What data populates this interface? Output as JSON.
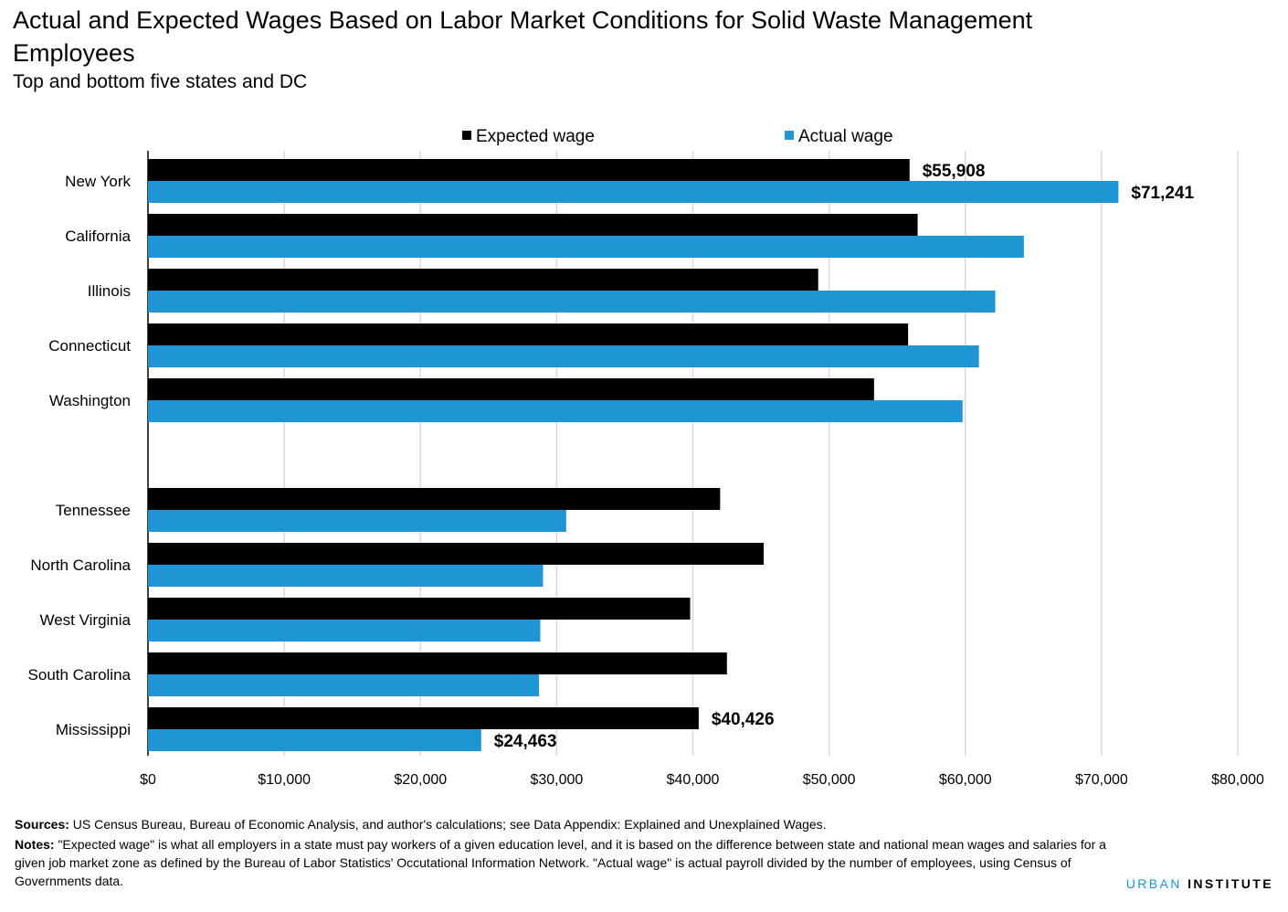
{
  "title": "Actual and Expected Wages Based on Labor Market Conditions for Solid Waste Management Employees",
  "subtitle": "Top and bottom five states and DC",
  "legend": {
    "expected": "Expected wage",
    "actual": "Actual wage"
  },
  "footer": {
    "sources_label": "Sources:",
    "sources_text": " US Census Bureau, Bureau of Economic Analysis, and author's calculations; see Data Appendix: Explained and Unexplained Wages.",
    "notes_label": "Notes:",
    "notes_text": " \"Expected wage\" is what all employers in a state must pay workers of a given education level, and it is based on the difference between state and national mean wages and salaries for a given job market zone as defined by the Bureau of Labor Statistics' Occutational Information Network. \"Actual wage\" is actual payroll divided by the number of employees, using Census of Governments data.",
    "brand_urban": "URBAN",
    "brand_institute": "INSTITUTE"
  },
  "chart_data": {
    "type": "bar",
    "orientation": "horizontal",
    "categories": [
      "New York",
      "California",
      "Illinois",
      "Connecticut",
      "Washington",
      "",
      "Tennessee",
      "North Carolina",
      "West Virginia",
      "South Carolina",
      "Mississippi"
    ],
    "series": [
      {
        "name": "Expected wage",
        "color": "#000000",
        "values": [
          55908,
          56500,
          49200,
          55800,
          53300,
          null,
          42000,
          45200,
          39800,
          42500,
          40426
        ]
      },
      {
        "name": "Actual wage",
        "color": "#1f96d3",
        "values": [
          71241,
          64300,
          62200,
          61000,
          59800,
          null,
          30700,
          29000,
          28800,
          28700,
          24463
        ]
      }
    ],
    "data_labels": [
      {
        "category": "New York",
        "series": "Expected wage",
        "text": "$55,908"
      },
      {
        "category": "New York",
        "series": "Actual wage",
        "text": "$71,241"
      },
      {
        "category": "Mississippi",
        "series": "Expected wage",
        "text": "$40,426"
      },
      {
        "category": "Mississippi",
        "series": "Actual wage",
        "text": "$24,463"
      }
    ],
    "xlim": [
      0,
      80000
    ],
    "xticks": [
      0,
      10000,
      20000,
      30000,
      40000,
      50000,
      60000,
      70000,
      80000
    ],
    "xtick_labels": [
      "$0",
      "$10,000",
      "$20,000",
      "$30,000",
      "$40,000",
      "$50,000",
      "$60,000",
      "$70,000",
      "$80,000"
    ],
    "grid": "vertical",
    "legend_position": "top"
  }
}
